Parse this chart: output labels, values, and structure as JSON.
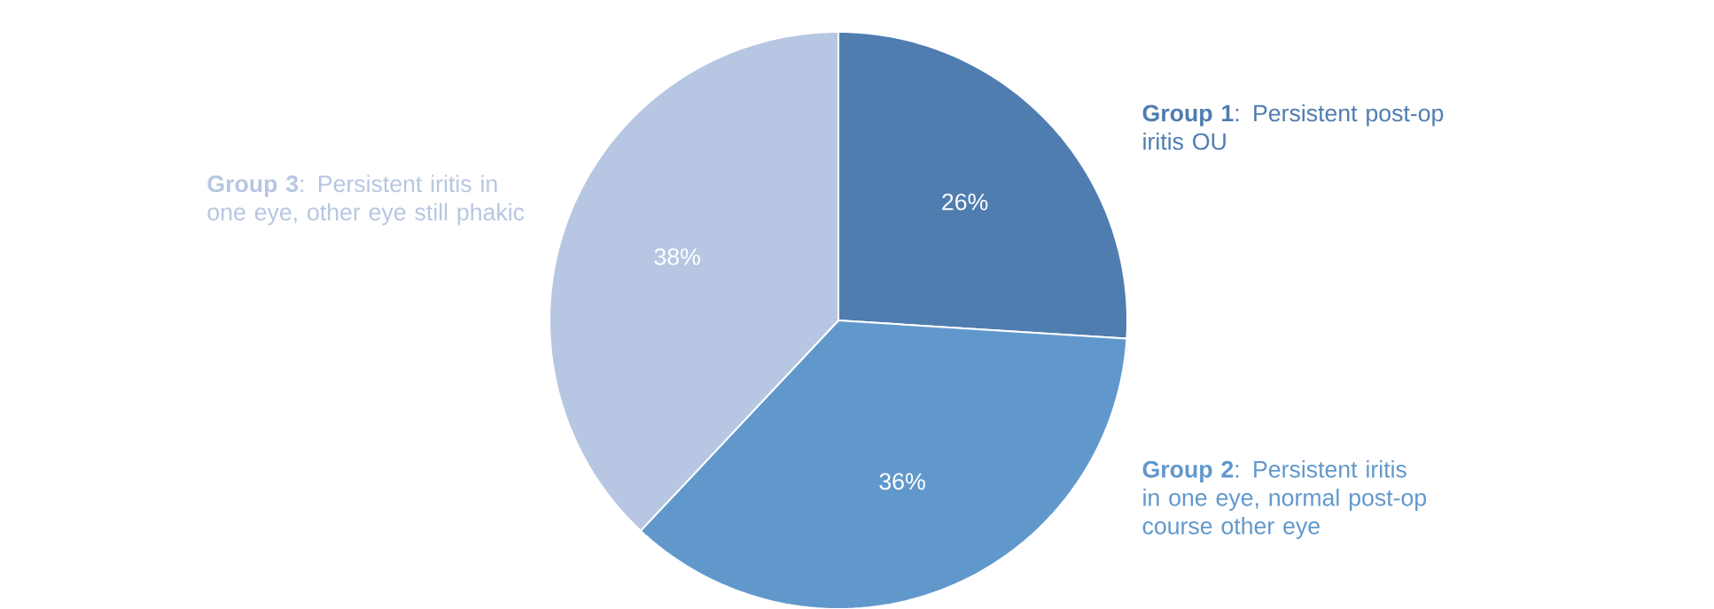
{
  "chart_data": {
    "type": "pie",
    "categories": [
      "**Group 1**: Persistent post-op iritis OU",
      "**Group 2**: Persistent iritis in one eye, normal post-op course other eye",
      "**Group 3**: Persistent iritis in one eye, other eye still phakic"
    ],
    "values": [
      26,
      36,
      38
    ],
    "value_labels": [
      "26%",
      "36%",
      "38%"
    ],
    "colors": [
      "#4f7db0",
      "#6198cc",
      "#b7c6e2"
    ]
  }
}
